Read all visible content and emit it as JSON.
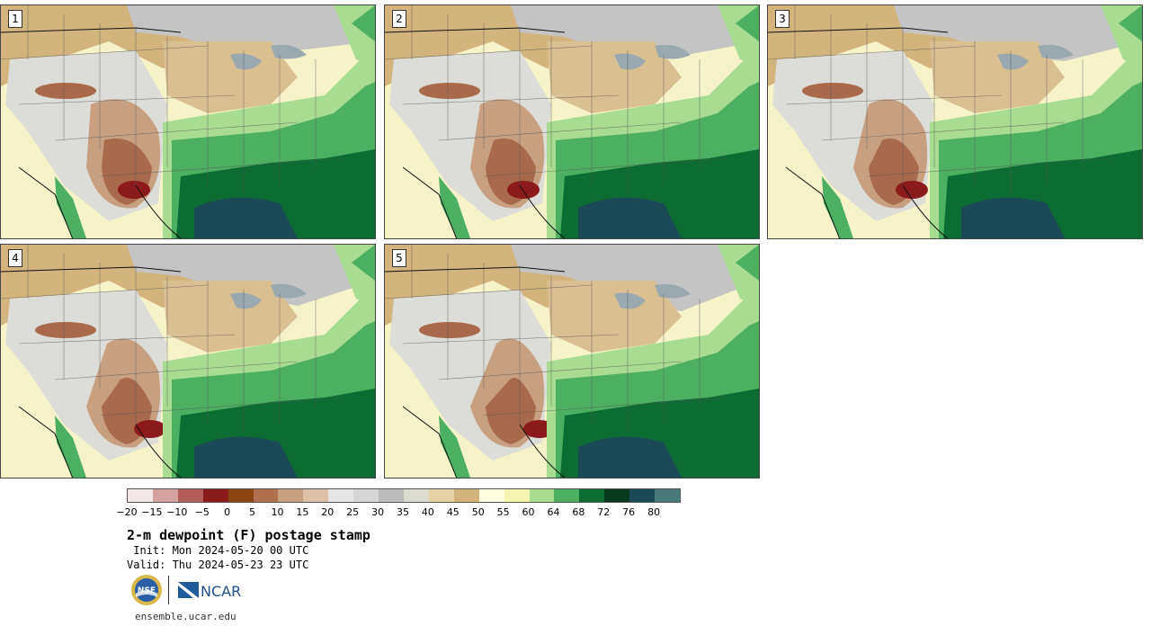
{
  "panels": [
    {
      "label": "1"
    },
    {
      "label": "2"
    },
    {
      "label": "3"
    },
    {
      "label": "4"
    },
    {
      "label": "5"
    }
  ],
  "colorbar": {
    "colors": [
      "#f2e6e6",
      "#d4a0a0",
      "#b35c5c",
      "#8b1a1a",
      "#8b4513",
      "#b07050",
      "#c8a080",
      "#dcc0a8",
      "#e6e6e6",
      "#d6d6d6",
      "#bcbcbc",
      "#dcdcd0",
      "#e2d2a4",
      "#d2b47c",
      "#ffffe0",
      "#f4f4b0",
      "#a8dc90",
      "#4cb060",
      "#0c6c34",
      "#053a1c",
      "#1a4a56",
      "#4a7a7a"
    ],
    "ticks": [
      "−20",
      "−15",
      "−10",
      "−5",
      "0",
      "5",
      "10",
      "15",
      "20",
      "25",
      "30",
      "35",
      "40",
      "45",
      "50",
      "55",
      "60",
      "64",
      "68",
      "72",
      "76",
      "80"
    ]
  },
  "title": "2-m dewpoint (F) postage stamp",
  "init_line": " Init: Mon 2024-05-20 00 UTC",
  "valid_line": "Valid: Thu 2024-05-23 23 UTC",
  "logos": {
    "nsf": "NSF",
    "ncar": "NCAR"
  },
  "footer": "ensemble.ucar.edu"
}
